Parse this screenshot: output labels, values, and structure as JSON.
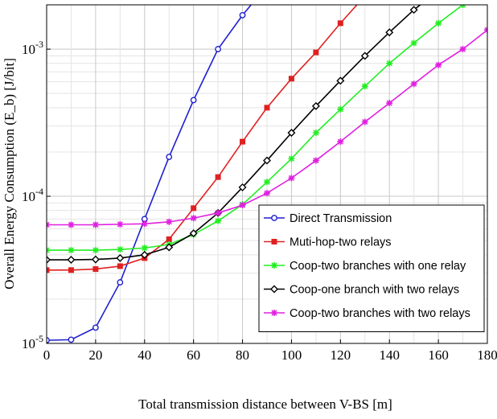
{
  "chart_data": {
    "type": "line",
    "title": "",
    "xlabel": "Total transmission distance between V-BS [m]",
    "ylabel": "Overall Energy Consumption (E_b) [J/bit]",
    "xlim": [
      0,
      180
    ],
    "ylim": [
      1e-05,
      0.002
    ],
    "yscale": "log",
    "grid": true,
    "legend_position": "bottom-right",
    "x_ticks": [
      "0",
      "20",
      "40",
      "60",
      "80",
      "100",
      "120",
      "140",
      "160",
      "180"
    ],
    "y_ticks": [
      {
        "base": "10",
        "exp": "-5",
        "value": 1e-05
      },
      {
        "base": "10",
        "exp": "-4",
        "value": 0.0001
      },
      {
        "base": "10",
        "exp": "-3",
        "value": 0.001
      }
    ],
    "series": [
      {
        "name": "Direct Transmission",
        "color": "#1f1fd0",
        "marker": "circle-open",
        "x": [
          0,
          10,
          20,
          30,
          40,
          50,
          60,
          70,
          80,
          90
        ],
        "y": [
          1.05e-05,
          1.06e-05,
          1.28e-05,
          2.6e-05,
          7e-05,
          0.000185,
          0.00045,
          0.001,
          0.0017,
          0.0027
        ]
      },
      {
        "name": "Muti-hop-two relays",
        "color": "#e02020",
        "marker": "square",
        "x": [
          0,
          10,
          20,
          30,
          40,
          50,
          60,
          70,
          80,
          90,
          100,
          110,
          120,
          130
        ],
        "y": [
          3.15e-05,
          3.15e-05,
          3.2e-05,
          3.35e-05,
          3.8e-05,
          5.1e-05,
          8.3e-05,
          0.000135,
          0.000235,
          0.0004,
          0.00063,
          0.00095,
          0.0015,
          0.0023
        ]
      },
      {
        "name": "Coop-two branches with one relay",
        "color": "#22ee22",
        "marker": "star",
        "x": [
          0,
          10,
          20,
          30,
          40,
          50,
          60,
          70,
          80,
          90,
          100,
          110,
          120,
          130,
          140,
          150,
          160,
          170
        ],
        "y": [
          4.3e-05,
          4.3e-05,
          4.3e-05,
          4.35e-05,
          4.45e-05,
          4.7e-05,
          5.5e-05,
          6.8e-05,
          8.8e-05,
          0.000125,
          0.00018,
          0.00027,
          0.00039,
          0.00056,
          0.0008,
          0.0011,
          0.0015,
          0.002
        ]
      },
      {
        "name": "Coop-one branch with two relays",
        "color": "#000000",
        "marker": "diamond-open",
        "x": [
          0,
          10,
          20,
          30,
          40,
          50,
          60,
          70,
          80,
          90,
          100,
          110,
          120,
          130,
          140,
          150,
          160
        ],
        "y": [
          3.7e-05,
          3.7e-05,
          3.72e-05,
          3.8e-05,
          4e-05,
          4.5e-05,
          5.6e-05,
          7.7e-05,
          0.000115,
          0.000175,
          0.00027,
          0.00041,
          0.00061,
          0.0009,
          0.0013,
          0.00185,
          0.0025
        ]
      },
      {
        "name": "Coop-two branches with two relays",
        "color": "#e020e0",
        "marker": "star",
        "x": [
          0,
          10,
          20,
          30,
          40,
          50,
          60,
          70,
          80,
          90,
          100,
          110,
          120,
          130,
          140,
          150,
          160,
          170,
          180
        ],
        "y": [
          6.4e-05,
          6.4e-05,
          6.4e-05,
          6.45e-05,
          6.5e-05,
          6.7e-05,
          7.1e-05,
          7.7e-05,
          8.7e-05,
          0.000105,
          0.000133,
          0.000175,
          0.000235,
          0.00032,
          0.00043,
          0.00058,
          0.00078,
          0.001,
          0.00135
        ]
      }
    ]
  }
}
